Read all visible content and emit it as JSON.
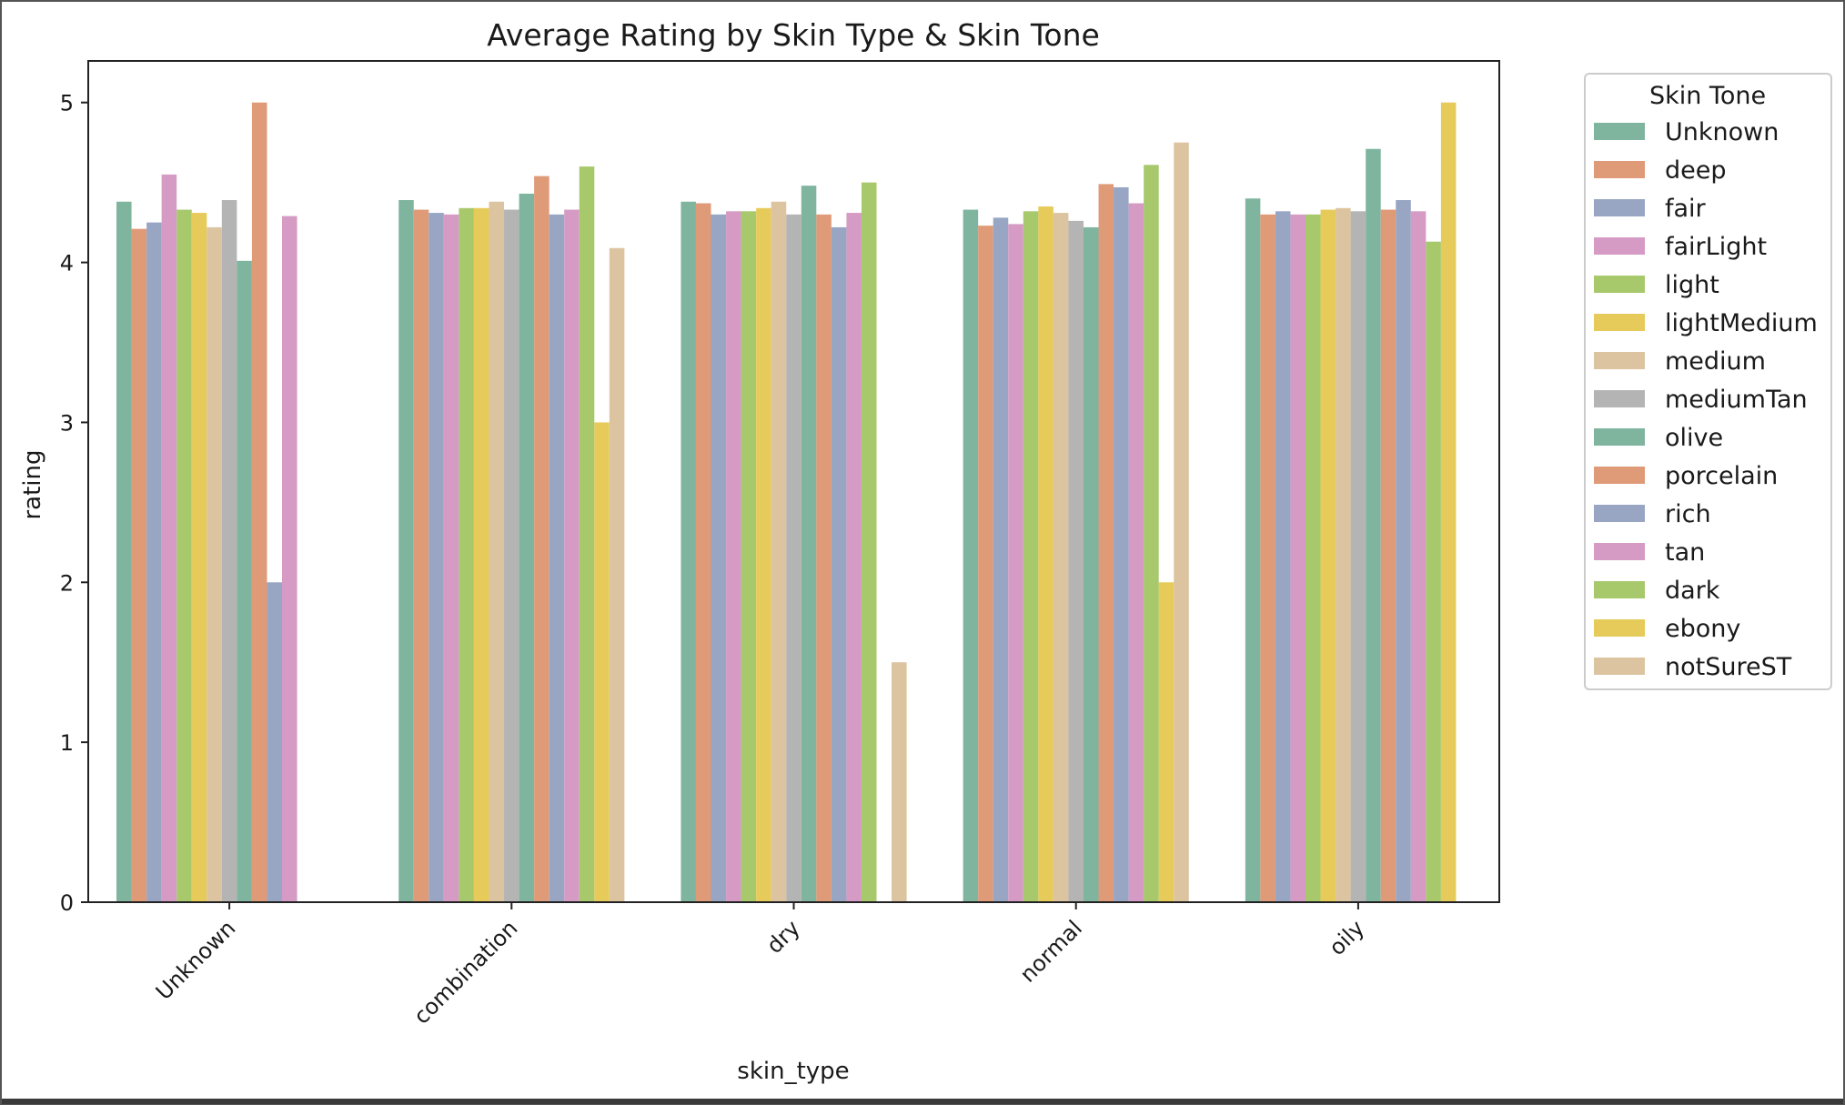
{
  "chart_data": {
    "type": "bar",
    "title": "Average Rating by Skin Type & Skin Tone",
    "xlabel": "skin_type",
    "ylabel": "rating",
    "ylim": [
      0,
      5.26
    ],
    "yticks": [
      0,
      1,
      2,
      3,
      4,
      5
    ],
    "grid": false,
    "legend_title": "Skin Tone",
    "legend_position": "outside-right",
    "categories": [
      "Unknown",
      "combination",
      "dry",
      "normal",
      "oily"
    ],
    "series": [
      {
        "name": "Unknown",
        "color": "#7fb59f",
        "values": [
          4.38,
          4.39,
          4.38,
          4.33,
          4.4
        ]
      },
      {
        "name": "deep",
        "color": "#df9a78",
        "values": [
          4.21,
          4.33,
          4.37,
          4.23,
          4.3
        ]
      },
      {
        "name": "fair",
        "color": "#98a6c4",
        "values": [
          4.25,
          4.31,
          4.3,
          4.28,
          4.32
        ]
      },
      {
        "name": "fairLight",
        "color": "#d59bc4",
        "values": [
          4.55,
          4.3,
          4.32,
          4.24,
          4.3
        ]
      },
      {
        "name": "light",
        "color": "#a7c96c",
        "values": [
          4.33,
          4.34,
          4.32,
          4.32,
          4.3
        ]
      },
      {
        "name": "lightMedium",
        "color": "#e6cb5b",
        "values": [
          4.31,
          4.34,
          4.34,
          4.35,
          4.33
        ]
      },
      {
        "name": "medium",
        "color": "#dcc4a0",
        "values": [
          4.22,
          4.38,
          4.38,
          4.31,
          4.34
        ]
      },
      {
        "name": "mediumTan",
        "color": "#b4b4b4",
        "values": [
          4.39,
          4.33,
          4.3,
          4.26,
          4.32
        ]
      },
      {
        "name": "olive",
        "color": "#7fb59f",
        "values": [
          4.01,
          4.43,
          4.48,
          4.22,
          4.71
        ]
      },
      {
        "name": "porcelain",
        "color": "#df9a78",
        "values": [
          5.0,
          4.54,
          4.3,
          4.49,
          4.33
        ]
      },
      {
        "name": "rich",
        "color": "#98a6c4",
        "values": [
          2.0,
          4.3,
          4.22,
          4.47,
          4.39
        ]
      },
      {
        "name": "tan",
        "color": "#d59bc4",
        "values": [
          4.29,
          4.33,
          4.31,
          4.37,
          4.32
        ]
      },
      {
        "name": "dark",
        "color": "#a7c96c",
        "values": [
          null,
          4.6,
          4.5,
          4.61,
          4.13
        ]
      },
      {
        "name": "ebony",
        "color": "#e6cb5b",
        "values": [
          null,
          3.0,
          null,
          2.0,
          5.0
        ]
      },
      {
        "name": "notSureST",
        "color": "#dcc4a0",
        "values": [
          null,
          4.09,
          1.5,
          4.75,
          null
        ]
      }
    ]
  }
}
